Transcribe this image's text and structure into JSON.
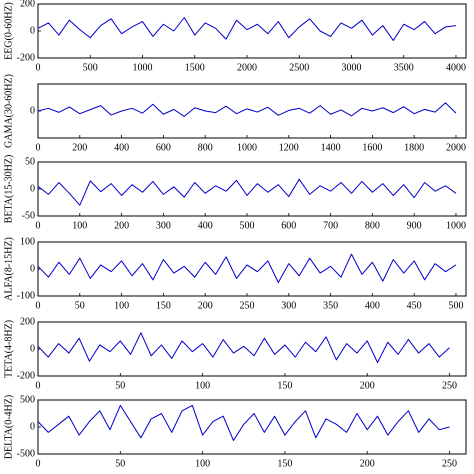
{
  "chart_data": [
    {
      "type": "line",
      "ylabel": "EEG(0-60HZ)",
      "color": "#0000cc",
      "xlim": [
        0,
        4096
      ],
      "xticks": [
        0,
        500,
        1000,
        1500,
        2000,
        2500,
        3000,
        3500,
        4000
      ],
      "ylim": [
        -200,
        200
      ],
      "yticks": [
        -200,
        0,
        200
      ],
      "x": [
        0,
        100,
        200,
        300,
        400,
        500,
        600,
        700,
        800,
        900,
        1000,
        1100,
        1200,
        1300,
        1400,
        1500,
        1600,
        1700,
        1800,
        1900,
        2000,
        2100,
        2200,
        2300,
        2400,
        2500,
        2600,
        2700,
        2800,
        2900,
        3000,
        3100,
        3200,
        3300,
        3400,
        3500,
        3600,
        3700,
        3800,
        3900,
        4000
      ],
      "values": [
        20,
        60,
        -30,
        80,
        10,
        -50,
        40,
        90,
        -20,
        30,
        70,
        -40,
        50,
        0,
        100,
        -30,
        60,
        20,
        -60,
        80,
        10,
        50,
        -20,
        70,
        -50,
        30,
        90,
        0,
        -40,
        60,
        20,
        80,
        -30,
        40,
        -70,
        50,
        10,
        70,
        -20,
        30,
        40
      ]
    },
    {
      "type": "line",
      "ylabel": "GAMA(30-60HZ)",
      "color": "#0000cc",
      "xlim": [
        0,
        2048
      ],
      "xticks": [
        0,
        200,
        400,
        600,
        800,
        1000,
        1200,
        1400,
        1600,
        1800,
        2000
      ],
      "ylim": [
        -100,
        100
      ],
      "yticks": [
        0
      ],
      "x": [
        0,
        50,
        100,
        150,
        200,
        250,
        300,
        350,
        400,
        450,
        500,
        550,
        600,
        650,
        700,
        750,
        800,
        850,
        900,
        950,
        1000,
        1050,
        1100,
        1150,
        1200,
        1250,
        1300,
        1350,
        1400,
        1450,
        1500,
        1550,
        1600,
        1650,
        1700,
        1750,
        1800,
        1850,
        1900,
        1950,
        2000
      ],
      "values": [
        0,
        10,
        -5,
        15,
        -10,
        5,
        20,
        -15,
        0,
        10,
        -8,
        25,
        -12,
        6,
        -20,
        12,
        0,
        -6,
        18,
        -10,
        8,
        -4,
        14,
        -16,
        2,
        10,
        -8,
        20,
        -12,
        4,
        -18,
        10,
        0,
        12,
        -6,
        16,
        -10,
        6,
        -4,
        30,
        -8
      ]
    },
    {
      "type": "line",
      "ylabel": "BETA(15-30HZ)",
      "color": "#0000cc",
      "xlim": [
        0,
        1024
      ],
      "xticks": [
        0,
        100,
        200,
        300,
        400,
        500,
        600,
        700,
        800,
        900,
        1000
      ],
      "ylim": [
        -50,
        50
      ],
      "yticks": [
        -50,
        0,
        50
      ],
      "x": [
        0,
        25,
        50,
        75,
        100,
        125,
        150,
        175,
        200,
        225,
        250,
        275,
        300,
        325,
        350,
        375,
        400,
        425,
        450,
        475,
        500,
        525,
        550,
        575,
        600,
        625,
        650,
        675,
        700,
        725,
        750,
        775,
        800,
        825,
        850,
        875,
        900,
        925,
        950,
        975,
        1000
      ],
      "values": [
        5,
        -10,
        12,
        -8,
        -30,
        15,
        -5,
        10,
        -12,
        8,
        -6,
        14,
        -10,
        4,
        -15,
        12,
        -8,
        6,
        -4,
        16,
        -12,
        10,
        -6,
        8,
        -14,
        18,
        -10,
        6,
        -4,
        12,
        -8,
        14,
        -6,
        10,
        -12,
        8,
        -16,
        12,
        -4,
        6,
        -8
      ]
    },
    {
      "type": "line",
      "ylabel": "ALFA(8-15HZ)",
      "color": "#0000cc",
      "xlim": [
        0,
        512
      ],
      "xticks": [
        0,
        50,
        100,
        150,
        200,
        250,
        300,
        350,
        400,
        450,
        500
      ],
      "ylim": [
        -100,
        100
      ],
      "yticks": [
        -100,
        0,
        100
      ],
      "x": [
        0,
        12.5,
        25,
        37.5,
        50,
        62.5,
        75,
        87.5,
        100,
        112.5,
        125,
        137.5,
        150,
        162.5,
        175,
        187.5,
        200,
        212.5,
        225,
        237.5,
        250,
        262.5,
        275,
        287.5,
        300,
        312.5,
        325,
        337.5,
        350,
        362.5,
        375,
        387.5,
        400,
        412.5,
        425,
        437.5,
        450,
        462.5,
        475,
        487.5,
        500
      ],
      "values": [
        10,
        -30,
        25,
        -20,
        40,
        -35,
        15,
        -10,
        30,
        -25,
        20,
        -40,
        35,
        -15,
        10,
        -30,
        25,
        -20,
        45,
        -35,
        15,
        -10,
        30,
        -50,
        20,
        -25,
        40,
        -15,
        10,
        -30,
        55,
        -20,
        25,
        -45,
        35,
        -15,
        30,
        -40,
        20,
        -10,
        15
      ]
    },
    {
      "type": "line",
      "ylabel": "TETA(4-8HZ)",
      "color": "#0000cc",
      "xlim": [
        0,
        260
      ],
      "xticks": [
        0,
        50,
        100,
        150,
        200,
        250
      ],
      "ylim": [
        -200,
        200
      ],
      "yticks": [
        -200,
        0,
        200
      ],
      "x": [
        0,
        6.25,
        12.5,
        18.75,
        25,
        31.25,
        37.5,
        43.75,
        50,
        56.25,
        62.5,
        68.75,
        75,
        81.25,
        87.5,
        93.75,
        100,
        106.25,
        112.5,
        118.75,
        125,
        131.25,
        137.5,
        143.75,
        150,
        156.25,
        162.5,
        168.75,
        175,
        181.25,
        187.5,
        193.75,
        200,
        206.25,
        212.5,
        218.75,
        225,
        231.25,
        237.5,
        243.75,
        250
      ],
      "values": [
        20,
        -60,
        40,
        -30,
        80,
        -90,
        30,
        -20,
        60,
        -40,
        120,
        -50,
        30,
        -70,
        60,
        -20,
        40,
        -60,
        70,
        -30,
        20,
        -50,
        80,
        -40,
        30,
        -60,
        50,
        -20,
        90,
        -80,
        40,
        -30,
        60,
        -100,
        50,
        -40,
        70,
        -30,
        40,
        -60,
        10
      ]
    },
    {
      "type": "line",
      "ylabel": "DELTA(0-4HZ)",
      "color": "#0000cc",
      "xlim": [
        0,
        260
      ],
      "xticks": [
        0,
        50,
        100,
        150,
        200,
        250
      ],
      "ylim": [
        -500,
        500
      ],
      "yticks": [
        -500,
        0,
        500
      ],
      "x": [
        0,
        6.25,
        12.5,
        18.75,
        25,
        31.25,
        37.5,
        43.75,
        50,
        56.25,
        62.5,
        68.75,
        75,
        81.25,
        87.5,
        93.75,
        100,
        106.25,
        112.5,
        118.75,
        125,
        131.25,
        137.5,
        143.75,
        150,
        156.25,
        162.5,
        168.75,
        175,
        181.25,
        187.5,
        193.75,
        200,
        206.25,
        212.5,
        218.75,
        225,
        231.25,
        237.5,
        243.75,
        250
      ],
      "values": [
        100,
        -100,
        50,
        200,
        -150,
        100,
        300,
        -50,
        400,
        100,
        -200,
        150,
        250,
        -100,
        300,
        400,
        -150,
        100,
        200,
        -250,
        50,
        250,
        -100,
        200,
        -150,
        100,
        300,
        -200,
        150,
        50,
        -100,
        250,
        -50,
        200,
        -150,
        100,
        300,
        -100,
        150,
        -50,
        0
      ]
    }
  ]
}
